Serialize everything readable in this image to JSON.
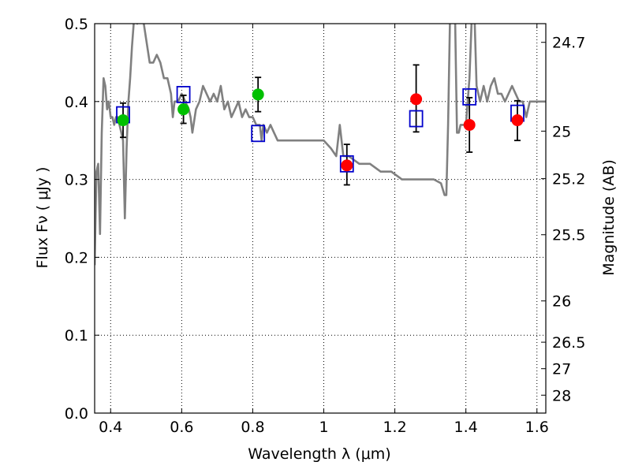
{
  "chart_data": {
    "type": "scatter",
    "xlabel": "Wavelength  λ (μm)",
    "ylabel": "Flux  Fν  ( μJy )",
    "y2label": "Magnitude (AB)",
    "xlim": [
      0.355,
      1.625
    ],
    "ylim": [
      0.0,
      0.5
    ],
    "grid": true,
    "x_ticks": [
      0.4,
      0.6,
      0.8,
      1.0,
      1.2,
      1.4,
      1.6
    ],
    "x_tick_labels": [
      "0.4",
      "0.6",
      "0.8",
      "1",
      "1.2",
      "1.4",
      "1.6"
    ],
    "y_ticks": [
      0.0,
      0.1,
      0.2,
      0.3,
      0.4,
      0.5
    ],
    "y_tick_labels": [
      "0.0",
      "0.1",
      "0.2",
      "0.3",
      "0.4",
      "0.5"
    ],
    "y2_ticks": [
      {
        "label": "24.7",
        "flux": 0.476
      },
      {
        "label": "25",
        "flux": 0.362
      },
      {
        "label": "25.2",
        "flux": 0.301
      },
      {
        "label": "25.5",
        "flux": 0.229
      },
      {
        "label": "26",
        "flux": 0.144
      },
      {
        "label": "26.5",
        "flux": 0.091
      },
      {
        "label": "27",
        "flux": 0.057
      },
      {
        "label": "28",
        "flux": 0.023
      }
    ],
    "series": [
      {
        "kind": "line",
        "color": "#808080",
        "points": [
          [
            0.355,
            0.19
          ],
          [
            0.36,
            0.31
          ],
          [
            0.365,
            0.32
          ],
          [
            0.37,
            0.23
          ],
          [
            0.375,
            0.36
          ],
          [
            0.38,
            0.43
          ],
          [
            0.385,
            0.42
          ],
          [
            0.39,
            0.39
          ],
          [
            0.395,
            0.4
          ],
          [
            0.4,
            0.38
          ],
          [
            0.405,
            0.38
          ],
          [
            0.41,
            0.37
          ],
          [
            0.415,
            0.38
          ],
          [
            0.42,
            0.38
          ],
          [
            0.425,
            0.37
          ],
          [
            0.43,
            0.36
          ],
          [
            0.435,
            0.35
          ],
          [
            0.44,
            0.25
          ],
          [
            0.445,
            0.34
          ],
          [
            0.45,
            0.4
          ],
          [
            0.455,
            0.43
          ],
          [
            0.46,
            0.47
          ],
          [
            0.465,
            0.5
          ],
          [
            0.47,
            0.52
          ],
          [
            0.475,
            0.5
          ],
          [
            0.48,
            0.51
          ],
          [
            0.49,
            0.51
          ],
          [
            0.5,
            0.48
          ],
          [
            0.51,
            0.45
          ],
          [
            0.52,
            0.45
          ],
          [
            0.53,
            0.46
          ],
          [
            0.54,
            0.45
          ],
          [
            0.55,
            0.43
          ],
          [
            0.56,
            0.43
          ],
          [
            0.57,
            0.41
          ],
          [
            0.575,
            0.38
          ],
          [
            0.58,
            0.4
          ],
          [
            0.59,
            0.4
          ],
          [
            0.6,
            0.41
          ],
          [
            0.61,
            0.4
          ],
          [
            0.62,
            0.39
          ],
          [
            0.625,
            0.38
          ],
          [
            0.63,
            0.36
          ],
          [
            0.64,
            0.39
          ],
          [
            0.65,
            0.4
          ],
          [
            0.66,
            0.42
          ],
          [
            0.67,
            0.41
          ],
          [
            0.68,
            0.4
          ],
          [
            0.69,
            0.41
          ],
          [
            0.7,
            0.4
          ],
          [
            0.71,
            0.42
          ],
          [
            0.72,
            0.39
          ],
          [
            0.73,
            0.4
          ],
          [
            0.74,
            0.38
          ],
          [
            0.75,
            0.39
          ],
          [
            0.76,
            0.4
          ],
          [
            0.77,
            0.38
          ],
          [
            0.78,
            0.39
          ],
          [
            0.79,
            0.38
          ],
          [
            0.8,
            0.38
          ],
          [
            0.81,
            0.37
          ],
          [
            0.82,
            0.37
          ],
          [
            0.825,
            0.35
          ],
          [
            0.83,
            0.37
          ],
          [
            0.84,
            0.36
          ],
          [
            0.85,
            0.37
          ],
          [
            0.86,
            0.36
          ],
          [
            0.87,
            0.35
          ],
          [
            0.88,
            0.35
          ],
          [
            0.9,
            0.35
          ],
          [
            0.92,
            0.35
          ],
          [
            0.94,
            0.35
          ],
          [
            0.96,
            0.35
          ],
          [
            0.98,
            0.35
          ],
          [
            1.0,
            0.35
          ],
          [
            1.02,
            0.34
          ],
          [
            1.035,
            0.33
          ],
          [
            1.045,
            0.37
          ],
          [
            1.055,
            0.33
          ],
          [
            1.07,
            0.33
          ],
          [
            1.1,
            0.32
          ],
          [
            1.13,
            0.32
          ],
          [
            1.16,
            0.31
          ],
          [
            1.19,
            0.31
          ],
          [
            1.22,
            0.3
          ],
          [
            1.25,
            0.3
          ],
          [
            1.28,
            0.3
          ],
          [
            1.31,
            0.3
          ],
          [
            1.33,
            0.295
          ],
          [
            1.34,
            0.28
          ],
          [
            1.345,
            0.28
          ],
          [
            1.35,
            0.37
          ],
          [
            1.355,
            0.5
          ],
          [
            1.36,
            0.55
          ],
          [
            1.365,
            0.55
          ],
          [
            1.37,
            0.5
          ],
          [
            1.375,
            0.36
          ],
          [
            1.38,
            0.36
          ],
          [
            1.385,
            0.37
          ],
          [
            1.39,
            0.37
          ],
          [
            1.4,
            0.37
          ],
          [
            1.41,
            0.43
          ],
          [
            1.42,
            0.55
          ],
          [
            1.425,
            0.5
          ],
          [
            1.43,
            0.42
          ],
          [
            1.44,
            0.4
          ],
          [
            1.45,
            0.42
          ],
          [
            1.46,
            0.4
          ],
          [
            1.47,
            0.42
          ],
          [
            1.48,
            0.43
          ],
          [
            1.49,
            0.41
          ],
          [
            1.5,
            0.41
          ],
          [
            1.51,
            0.4
          ],
          [
            1.52,
            0.41
          ],
          [
            1.53,
            0.42
          ],
          [
            1.54,
            0.41
          ],
          [
            1.55,
            0.4
          ],
          [
            1.56,
            0.4
          ],
          [
            1.57,
            0.38
          ],
          [
            1.58,
            0.4
          ],
          [
            1.59,
            0.4
          ],
          [
            1.6,
            0.4
          ],
          [
            1.61,
            0.4
          ],
          [
            1.625,
            0.4
          ]
        ]
      },
      {
        "kind": "points",
        "marker": "open-square",
        "color": "#0000cc",
        "points": [
          [
            0.435,
            0.383
          ],
          [
            0.605,
            0.409
          ],
          [
            0.815,
            0.359
          ],
          [
            1.065,
            0.32
          ],
          [
            1.26,
            0.378
          ],
          [
            1.41,
            0.406
          ],
          [
            1.545,
            0.385
          ]
        ]
      },
      {
        "kind": "points",
        "marker": "circle",
        "color": "#00c000",
        "points": [
          [
            0.435,
            0.376,
            0.354,
            0.398
          ],
          [
            0.605,
            0.39,
            0.372,
            0.408
          ],
          [
            0.815,
            0.409,
            0.387,
            0.431
          ]
        ]
      },
      {
        "kind": "points",
        "marker": "circle",
        "color": "#ff0000",
        "points": [
          [
            1.065,
            0.318,
            0.293,
            0.345
          ],
          [
            1.26,
            0.403,
            0.361,
            0.447
          ],
          [
            1.41,
            0.37,
            0.335,
            0.405
          ],
          [
            1.545,
            0.376,
            0.35,
            0.401
          ]
        ]
      }
    ]
  }
}
